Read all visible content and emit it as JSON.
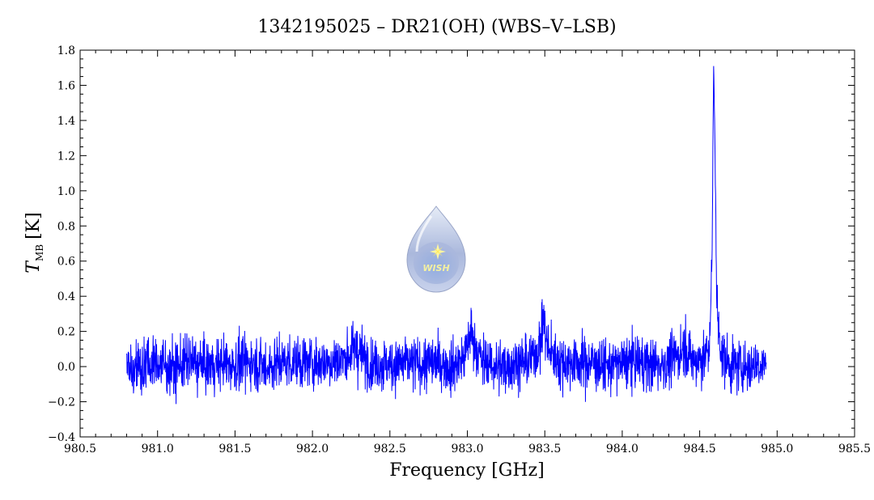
{
  "chart_data": {
    "type": "line",
    "title": "1342195025 – DR21(OH) (WBS–V–LSB)",
    "xlabel": "Frequency [GHz]",
    "ylabel_main": "T",
    "ylabel_sub": "MB",
    "ylabel_unit": "[K]",
    "xlim": [
      980.5,
      985.5
    ],
    "ylim": [
      -0.4,
      1.8
    ],
    "xticks": [
      980.5,
      981.0,
      981.5,
      982.0,
      982.5,
      983.0,
      983.5,
      984.0,
      984.5,
      985.0,
      985.5
    ],
    "xtick_labels": [
      "980.5",
      "981.0",
      "981.5",
      "982.0",
      "982.5",
      "983.0",
      "983.5",
      "984.0",
      "984.5",
      "985.0",
      "985.5"
    ],
    "yticks": [
      -0.4,
      -0.2,
      0.0,
      0.2,
      0.4,
      0.6,
      0.8,
      1.0,
      1.2,
      1.4,
      1.6,
      1.8
    ],
    "ytick_labels": [
      "−0.4",
      "−0.2",
      "0.0",
      "0.2",
      "0.4",
      "0.6",
      "0.8",
      "1.0",
      "1.2",
      "1.4",
      "1.6",
      "1.8"
    ],
    "grid": false,
    "series_color": "#0000ff",
    "series": [
      {
        "x": [
          980.8,
          980.9,
          981.0,
          981.1,
          981.2,
          981.3,
          981.4,
          981.5,
          981.6,
          981.7,
          981.8,
          981.9,
          982.0,
          982.1,
          982.2,
          982.28,
          982.3,
          982.35,
          982.4,
          982.5,
          982.6,
          982.7,
          982.8,
          982.9,
          982.98,
          983.02,
          983.05,
          983.1,
          983.2,
          983.3,
          983.4,
          983.47,
          983.49,
          983.52,
          983.6,
          983.7,
          983.8,
          983.9,
          984.0,
          984.1,
          984.2,
          984.3,
          984.38,
          984.4,
          984.45,
          984.5,
          984.56,
          984.58,
          984.59,
          984.6,
          984.61,
          984.63,
          984.65,
          984.7,
          984.8,
          984.9,
          984.93
        ],
        "y": [
          0.02,
          0.0,
          0.02,
          -0.01,
          0.03,
          0.0,
          0.02,
          0.01,
          0.03,
          0.0,
          0.02,
          0.03,
          0.02,
          0.03,
          0.04,
          0.1,
          0.08,
          0.03,
          0.02,
          0.01,
          0.02,
          0.01,
          0.02,
          0.0,
          0.05,
          0.2,
          0.12,
          0.02,
          0.0,
          0.02,
          0.03,
          0.12,
          0.28,
          0.1,
          0.02,
          0.03,
          0.02,
          0.0,
          0.02,
          0.03,
          0.01,
          0.02,
          0.08,
          0.13,
          0.03,
          0.04,
          0.08,
          0.6,
          1.72,
          1.2,
          0.35,
          0.15,
          0.05,
          0.01,
          0.0,
          0.02,
          0.03
        ],
        "noise_rms": 0.075
      }
    ]
  },
  "logo": {
    "text": "WISH"
  }
}
